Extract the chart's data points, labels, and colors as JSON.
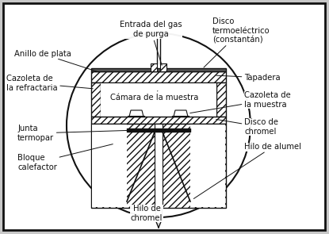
{
  "bg_color": "#c8c8c8",
  "labels": {
    "anillo_de_plata": "Anillo de plata",
    "entrada_gas": "Entrada del gas\nde purga",
    "disco_termoelectrico": "Disco\ntermoeléctrico\n(constantán)",
    "cazoleta_refractaria": "Cazoleta de\nla refractaria",
    "camara_muestra": "Cámara de la muestra",
    "tapadera": "Tapadera",
    "cazoleta_muestra": "Cazoleta de\nla muestra",
    "junta_termopar": "Junta\ntermopar",
    "disco_chromel": "Disco de\nchromel",
    "hilo_alumel": "Hilo de alumel",
    "bloque_calefactor": "Bloque\ncalefactor",
    "hilo_chromel": "Hilo de\nchromel"
  },
  "font_size": 7.2,
  "line_color": "#111111"
}
